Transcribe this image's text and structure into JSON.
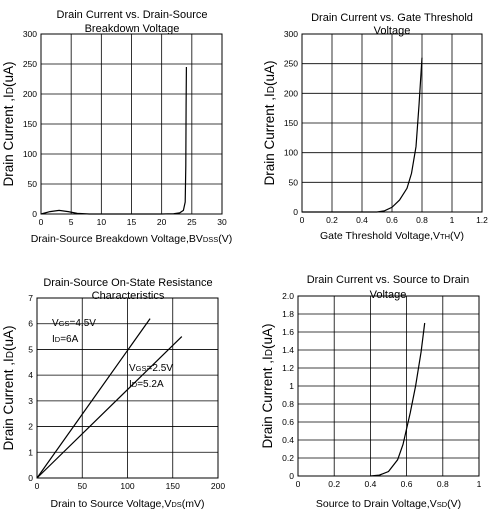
{
  "chart_data": [
    {
      "type": "line",
      "title": [
        "Drain Current vs. Drain-Source",
        "Breakdown Voltage"
      ],
      "xlabel": "Drain-Source Breakdown Voltage,BVDSS(V)",
      "ylabel": "Drain Current ,ID(uA)",
      "xlim": [
        0,
        30
      ],
      "ylim": [
        0,
        300
      ],
      "x_ticks": [
        0,
        5,
        10,
        15,
        20,
        25,
        30
      ],
      "y_ticks": [
        0,
        50,
        100,
        150,
        200,
        250,
        300
      ],
      "grid": true,
      "series": [
        {
          "x": [
            0,
            1.5,
            3,
            4.5,
            6,
            8,
            12,
            16,
            20,
            22,
            23,
            23.6,
            23.9,
            24.0,
            24.05,
            24.1
          ],
          "y": [
            0,
            4,
            6,
            4,
            1,
            0,
            0,
            0,
            0,
            0.5,
            2,
            6,
            20,
            80,
            180,
            245
          ]
        }
      ]
    },
    {
      "type": "line",
      "title": [
        "Drain Current vs. Gate Threshold",
        "Voltage"
      ],
      "xlabel": "Gate Threshold Voltage,VTH(V)",
      "ylabel": "Drain Current ,ID(uA)",
      "xlim": [
        0,
        1.2
      ],
      "ylim": [
        0,
        300
      ],
      "x_ticks": [
        "0",
        "0.2",
        "0.4",
        "0.6",
        "0.8",
        "1",
        "1.2"
      ],
      "y_ticks": [
        0,
        50,
        100,
        150,
        200,
        250,
        300
      ],
      "grid": true,
      "series": [
        {
          "x": [
            0,
            0.3,
            0.5,
            0.55,
            0.6,
            0.65,
            0.7,
            0.73,
            0.76,
            0.78,
            0.8
          ],
          "y": [
            0,
            0,
            0,
            2,
            8,
            20,
            40,
            65,
            110,
            180,
            260
          ]
        }
      ]
    },
    {
      "type": "line",
      "title": [
        "Drain-Source On-State Resistance",
        "Characteristics"
      ],
      "xlabel": "Drain to Source Voltage,VDS(mV)",
      "ylabel": "Drain Current ,ID(uA)",
      "xlim": [
        0,
        200
      ],
      "ylim": [
        0,
        7
      ],
      "x_ticks": [
        0,
        50,
        100,
        150,
        200
      ],
      "y_ticks": [
        0,
        1,
        2,
        3,
        4,
        5,
        6,
        7
      ],
      "grid": true,
      "annotations": [
        [
          "VGS=4.5V",
          "ID=6A"
        ],
        [
          "VGS=2.5V",
          "ID=5.2A"
        ]
      ],
      "series": [
        {
          "x": [
            0,
            125
          ],
          "y": [
            0,
            6.2
          ]
        },
        {
          "x": [
            0,
            160
          ],
          "y": [
            0,
            5.5
          ]
        }
      ]
    },
    {
      "type": "line",
      "title": [
        "Drain Current vs. Source to Drain",
        "Voltage"
      ],
      "xlabel": "Source to Drain Voltage,VSD(V)",
      "ylabel": "Drain Current ,ID(uA)",
      "xlim": [
        0,
        1
      ],
      "ylim": [
        0,
        2
      ],
      "x_ticks": [
        "0",
        "0.2",
        "0.4",
        "0.6",
        "0.8",
        "1"
      ],
      "y_ticks": [
        "0",
        "0.2",
        "0.4",
        "0.6",
        "0.8",
        "1",
        "1.2",
        "1.4",
        "1.6",
        "1.8",
        "2.0"
      ],
      "grid": true,
      "series": [
        {
          "x": [
            0.4,
            0.45,
            0.5,
            0.55,
            0.58,
            0.62,
            0.65,
            0.68,
            0.7
          ],
          "y": [
            0,
            0.01,
            0.05,
            0.18,
            0.35,
            0.7,
            1.0,
            1.38,
            1.7
          ]
        }
      ]
    }
  ]
}
